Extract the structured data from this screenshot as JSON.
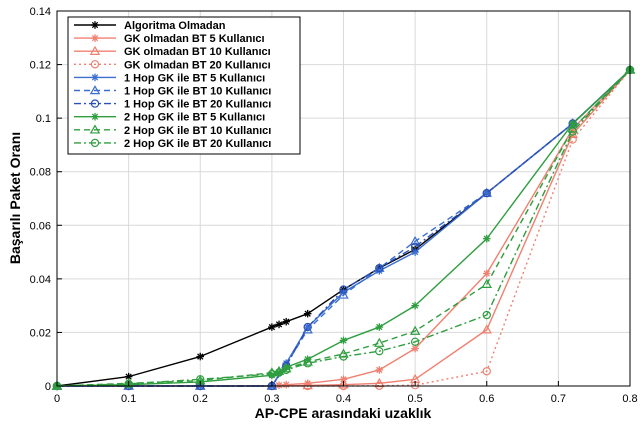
{
  "chart_data": {
    "type": "line",
    "xlabel": "AP-CPE arasındaki uzaklık",
    "ylabel": "Başarılı Paket Oranı",
    "xlim": [
      0,
      0.8
    ],
    "ylim": [
      0,
      0.14
    ],
    "xticks": [
      "0",
      "0.1",
      "0.2",
      "0.3",
      "0.4",
      "0.5",
      "0.6",
      "0.7",
      "0.8"
    ],
    "yticks": [
      "0",
      "0.02",
      "0.04",
      "0.06",
      "0.08",
      "0.1",
      "0.12",
      "0.14"
    ],
    "grid": true,
    "legend_position": "top-left",
    "series": [
      {
        "name": "Algoritma Olmadan",
        "color": "#000000",
        "style": "solid",
        "marker": "star",
        "x": [
          0,
          0.1,
          0.2,
          0.3,
          0.31,
          0.32,
          0.35,
          0.4,
          0.45,
          0.5,
          0.6,
          0.72,
          0.8
        ],
        "y": [
          0,
          0.0035,
          0.011,
          0.022,
          0.023,
          0.024,
          0.027,
          0.036,
          0.044,
          0.051,
          0.072,
          0.098,
          0.118
        ]
      },
      {
        "name": "GK olmadan BT 5 Kullanıcı",
        "color": "#f08070",
        "style": "solid",
        "marker": "star",
        "x": [
          0,
          0.1,
          0.2,
          0.3,
          0.31,
          0.32,
          0.35,
          0.4,
          0.45,
          0.5,
          0.6,
          0.72,
          0.8
        ],
        "y": [
          0,
          0,
          0,
          0,
          0.0003,
          0.0005,
          0.001,
          0.0025,
          0.006,
          0.014,
          0.042,
          0.096,
          0.118
        ]
      },
      {
        "name": "GK olmadan BT 10 Kullanıcı",
        "color": "#f08070",
        "style": "solid",
        "marker": "triangle",
        "x": [
          0,
          0.1,
          0.2,
          0.3,
          0.35,
          0.4,
          0.45,
          0.5,
          0.6,
          0.72,
          0.8
        ],
        "y": [
          0,
          0,
          0,
          0,
          0.0002,
          0.0005,
          0.001,
          0.0025,
          0.021,
          0.094,
          0.118
        ]
      },
      {
        "name": "GK olmadan BT 20 Kullanıcı",
        "color": "#f08070",
        "style": "dotted",
        "marker": "circle",
        "x": [
          0,
          0.1,
          0.2,
          0.3,
          0.35,
          0.4,
          0.45,
          0.5,
          0.6,
          0.72,
          0.8
        ],
        "y": [
          0,
          0,
          0,
          0,
          0,
          0,
          0.0001,
          0.0003,
          0.0055,
          0.092,
          0.118
        ]
      },
      {
        "name": "1 Hop GK ile BT 5 Kullanıcı",
        "color": "#3a6fd0",
        "style": "solid",
        "marker": "star",
        "x": [
          0,
          0.1,
          0.2,
          0.3,
          0.32,
          0.35,
          0.4,
          0.45,
          0.5,
          0.6,
          0.72,
          0.8
        ],
        "y": [
          0,
          0,
          0,
          0,
          0.0085,
          0.022,
          0.035,
          0.043,
          0.05,
          0.072,
          0.098,
          0.118
        ]
      },
      {
        "name": "1 Hop GK ile BT 10 Kullanıcı",
        "color": "#3a6fd0",
        "style": "dashed",
        "marker": "triangle",
        "x": [
          0,
          0.1,
          0.2,
          0.3,
          0.32,
          0.35,
          0.4,
          0.45,
          0.5,
          0.6,
          0.72,
          0.8
        ],
        "y": [
          0,
          0,
          0,
          0,
          0.008,
          0.021,
          0.034,
          0.044,
          0.054,
          0.072,
          0.098,
          0.118
        ]
      },
      {
        "name": "1 Hop GK ile BT 20 Kullanıcı",
        "color": "#2a4fb8",
        "style": "dashdot",
        "marker": "circle",
        "x": [
          0,
          0.1,
          0.2,
          0.3,
          0.32,
          0.35,
          0.4,
          0.45,
          0.5,
          0.6,
          0.72,
          0.8
        ],
        "y": [
          0,
          0,
          0,
          0,
          0.0075,
          0.022,
          0.036,
          0.044,
          0.052,
          0.072,
          0.098,
          0.118
        ]
      },
      {
        "name": "2 Hop GK ile BT 5 Kullanıcı",
        "color": "#2e9e3e",
        "style": "solid",
        "marker": "star",
        "x": [
          0,
          0.1,
          0.2,
          0.3,
          0.31,
          0.32,
          0.35,
          0.4,
          0.45,
          0.5,
          0.6,
          0.72,
          0.8
        ],
        "y": [
          0,
          0.0005,
          0.0015,
          0.004,
          0.005,
          0.007,
          0.01,
          0.017,
          0.022,
          0.03,
          0.055,
          0.098,
          0.118
        ]
      },
      {
        "name": "2 Hop GK ile BT 10 Kullanıcı",
        "color": "#2e9e3e",
        "style": "dashed",
        "marker": "triangle",
        "x": [
          0,
          0.1,
          0.2,
          0.3,
          0.31,
          0.32,
          0.35,
          0.4,
          0.45,
          0.5,
          0.6,
          0.72,
          0.8
        ],
        "y": [
          0,
          0.001,
          0.002,
          0.005,
          0.0055,
          0.0065,
          0.009,
          0.012,
          0.016,
          0.0205,
          0.038,
          0.096,
          0.118
        ]
      },
      {
        "name": "2 Hop GK ile BT 20 Kullanıcı",
        "color": "#2e9e3e",
        "style": "dashdot",
        "marker": "circle",
        "x": [
          0,
          0.1,
          0.2,
          0.3,
          0.31,
          0.32,
          0.35,
          0.4,
          0.45,
          0.5,
          0.6,
          0.72,
          0.8
        ],
        "y": [
          0,
          0.0008,
          0.0025,
          0.0045,
          0.005,
          0.006,
          0.0085,
          0.011,
          0.013,
          0.0165,
          0.0265,
          0.095,
          0.118
        ]
      }
    ]
  }
}
